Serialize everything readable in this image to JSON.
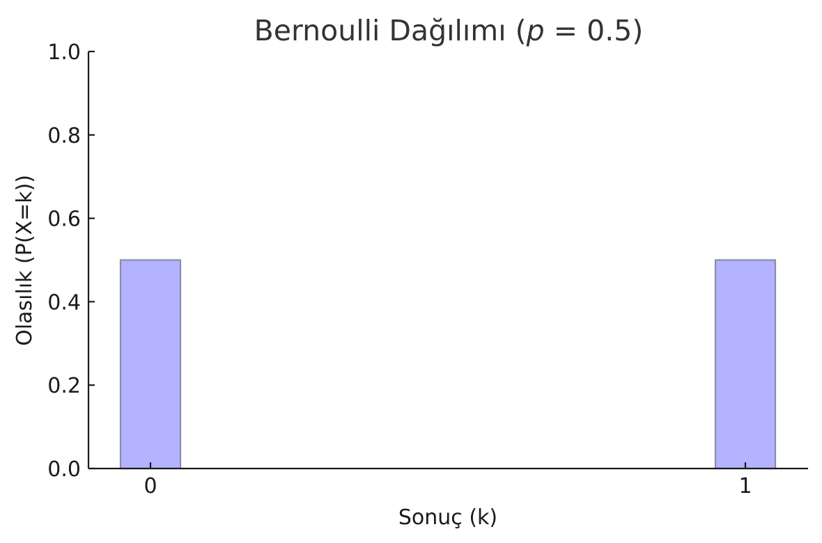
{
  "chart_data": {
    "type": "bar",
    "title_prefix": "Bernoulli Dağılımı (",
    "title_var": "p",
    "title_suffix": " = 0.5)",
    "xlabel": "Sonuç (k)",
    "ylabel": "Olasılık (P(X=k))",
    "categories": [
      "0",
      "1"
    ],
    "values": [
      0.5,
      0.5
    ],
    "ylim": [
      0,
      1.0
    ],
    "yticks": [
      "0.0",
      "0.2",
      "0.4",
      "0.6",
      "0.8",
      "1.0"
    ],
    "bar_color": "#b3b3ff",
    "bar_edge_color": "#8c8cab",
    "grid": false,
    "legend": "none"
  }
}
